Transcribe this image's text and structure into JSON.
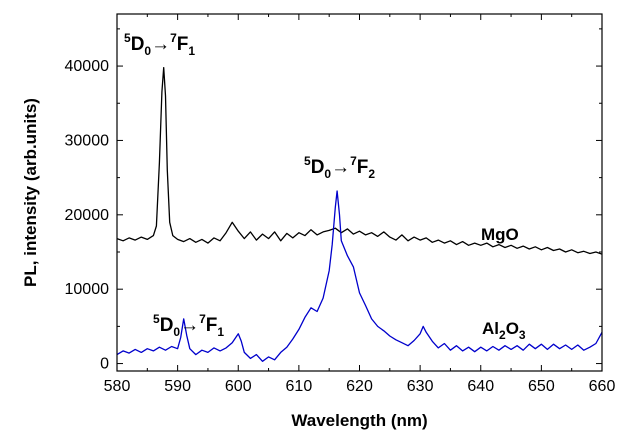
{
  "chart_data": {
    "type": "line",
    "xlabel": "Wavelength (nm)",
    "ylabel": "PL, intensity (arb.units)",
    "xlim": [
      580,
      660
    ],
    "ylim": [
      -1000,
      47000
    ],
    "x_ticks": [
      580,
      590,
      600,
      610,
      620,
      630,
      640,
      650,
      660
    ],
    "y_ticks": [
      0,
      10000,
      20000,
      30000,
      40000
    ],
    "grid": false,
    "series": [
      {
        "name": "MgO",
        "color": "#000000",
        "points": [
          [
            580,
            16800
          ],
          [
            581,
            16500
          ],
          [
            582,
            16900
          ],
          [
            583,
            16600
          ],
          [
            584,
            17000
          ],
          [
            585,
            16700
          ],
          [
            586,
            17200
          ],
          [
            586.5,
            18500
          ],
          [
            587,
            27000
          ],
          [
            587.4,
            36500
          ],
          [
            587.7,
            39800
          ],
          [
            588,
            36000
          ],
          [
            588.3,
            26000
          ],
          [
            588.7,
            19000
          ],
          [
            589.2,
            17200
          ],
          [
            590,
            16700
          ],
          [
            591,
            16400
          ],
          [
            592,
            16800
          ],
          [
            593,
            16300
          ],
          [
            594,
            16700
          ],
          [
            595,
            16200
          ],
          [
            596,
            16900
          ],
          [
            597,
            16500
          ],
          [
            598,
            17600
          ],
          [
            599,
            19000
          ],
          [
            600,
            17800
          ],
          [
            601,
            16800
          ],
          [
            602,
            17700
          ],
          [
            603,
            16600
          ],
          [
            604,
            17400
          ],
          [
            605,
            16800
          ],
          [
            606,
            17700
          ],
          [
            607,
            16500
          ],
          [
            608,
            17500
          ],
          [
            609,
            16900
          ],
          [
            610,
            17600
          ],
          [
            611,
            17200
          ],
          [
            612,
            18000
          ],
          [
            613,
            17300
          ],
          [
            614,
            17700
          ],
          [
            615,
            17900
          ],
          [
            616,
            18200
          ],
          [
            617,
            17600
          ],
          [
            618,
            18100
          ],
          [
            619,
            17400
          ],
          [
            620,
            17800
          ],
          [
            621,
            17300
          ],
          [
            622,
            17600
          ],
          [
            623,
            17100
          ],
          [
            624,
            17700
          ],
          [
            625,
            17000
          ],
          [
            626,
            16600
          ],
          [
            627,
            17300
          ],
          [
            628,
            16500
          ],
          [
            629,
            17000
          ],
          [
            630,
            16600
          ],
          [
            631,
            16900
          ],
          [
            632,
            16300
          ],
          [
            633,
            16600
          ],
          [
            634,
            16200
          ],
          [
            635,
            16500
          ],
          [
            636,
            16000
          ],
          [
            637,
            16400
          ],
          [
            638,
            15900
          ],
          [
            639,
            16200
          ],
          [
            640,
            15900
          ],
          [
            641,
            16200
          ],
          [
            642,
            15700
          ],
          [
            643,
            16000
          ],
          [
            644,
            15600
          ],
          [
            645,
            15900
          ],
          [
            646,
            15500
          ],
          [
            647,
            15800
          ],
          [
            648,
            15400
          ],
          [
            649,
            15700
          ],
          [
            650,
            15300
          ],
          [
            651,
            15600
          ],
          [
            652,
            15200
          ],
          [
            653,
            15400
          ],
          [
            654,
            15000
          ],
          [
            655,
            15300
          ],
          [
            656,
            14900
          ],
          [
            657,
            15100
          ],
          [
            658,
            14800
          ],
          [
            659,
            15000
          ],
          [
            660,
            14700
          ]
        ]
      },
      {
        "name": "Al2O3",
        "color": "#0000cc",
        "points": [
          [
            580,
            1200
          ],
          [
            581,
            1700
          ],
          [
            582,
            1400
          ],
          [
            583,
            1900
          ],
          [
            584,
            1500
          ],
          [
            585,
            2000
          ],
          [
            586,
            1700
          ],
          [
            587,
            2200
          ],
          [
            588,
            1800
          ],
          [
            589,
            2300
          ],
          [
            590,
            2000
          ],
          [
            590.5,
            3500
          ],
          [
            591,
            6000
          ],
          [
            591.5,
            3800
          ],
          [
            592,
            2000
          ],
          [
            593,
            1200
          ],
          [
            594,
            1800
          ],
          [
            595,
            1500
          ],
          [
            596,
            2100
          ],
          [
            597,
            1700
          ],
          [
            598,
            2100
          ],
          [
            599,
            2800
          ],
          [
            600,
            4000
          ],
          [
            600.5,
            3000
          ],
          [
            601,
            1500
          ],
          [
            602,
            700
          ],
          [
            603,
            1200
          ],
          [
            604,
            300
          ],
          [
            605,
            900
          ],
          [
            606,
            500
          ],
          [
            607,
            1500
          ],
          [
            608,
            2200
          ],
          [
            609,
            3300
          ],
          [
            610,
            4600
          ],
          [
            611,
            6200
          ],
          [
            612,
            7500
          ],
          [
            613,
            7000
          ],
          [
            614,
            8800
          ],
          [
            615,
            12500
          ],
          [
            615.5,
            16000
          ],
          [
            616,
            21000
          ],
          [
            616.3,
            23200
          ],
          [
            616.7,
            20000
          ],
          [
            617,
            16500
          ],
          [
            618,
            14500
          ],
          [
            619,
            13000
          ],
          [
            620,
            9500
          ],
          [
            621,
            7800
          ],
          [
            622,
            6000
          ],
          [
            623,
            5000
          ],
          [
            624,
            4400
          ],
          [
            625,
            3700
          ],
          [
            626,
            3200
          ],
          [
            627,
            2800
          ],
          [
            628,
            2400
          ],
          [
            629,
            3100
          ],
          [
            630,
            4000
          ],
          [
            630.5,
            5000
          ],
          [
            631,
            4200
          ],
          [
            632,
            3000
          ],
          [
            633,
            2100
          ],
          [
            634,
            2700
          ],
          [
            635,
            1800
          ],
          [
            636,
            2400
          ],
          [
            637,
            1700
          ],
          [
            638,
            2200
          ],
          [
            639,
            1600
          ],
          [
            640,
            2200
          ],
          [
            641,
            1700
          ],
          [
            642,
            2300
          ],
          [
            643,
            1800
          ],
          [
            644,
            2400
          ],
          [
            645,
            1900
          ],
          [
            646,
            2400
          ],
          [
            647,
            1800
          ],
          [
            648,
            2600
          ],
          [
            649,
            2000
          ],
          [
            650,
            2600
          ],
          [
            651,
            1900
          ],
          [
            652,
            2600
          ],
          [
            653,
            2000
          ],
          [
            654,
            2500
          ],
          [
            655,
            1900
          ],
          [
            656,
            2500
          ],
          [
            657,
            1800
          ],
          [
            658,
            2200
          ],
          [
            659,
            2700
          ],
          [
            660,
            4200
          ]
        ]
      }
    ],
    "series_labels": [
      {
        "series": "MgO",
        "text": "MgO"
      },
      {
        "series": "Al2O3",
        "text_main": "Al",
        "sub1": "2",
        "text_mid": "O",
        "sub2": "3"
      }
    ],
    "annotations": [
      {
        "id": "mgo_f1",
        "sup1": "5",
        "a": "D",
        "sub1": "0",
        "arrow": "→",
        "sup2": "7",
        "b": "F",
        "sub2": "1"
      },
      {
        "id": "al_f2",
        "sup1": "5",
        "a": "D",
        "sub1": "0",
        "arrow": "→",
        "sup2": "7",
        "b": "F",
        "sub2": "2"
      },
      {
        "id": "al_f1",
        "sup1": "5",
        "a": "D",
        "sub1": "0",
        "arrow": "→",
        "sup2": "7",
        "b": "F",
        "sub2": "1"
      }
    ]
  }
}
